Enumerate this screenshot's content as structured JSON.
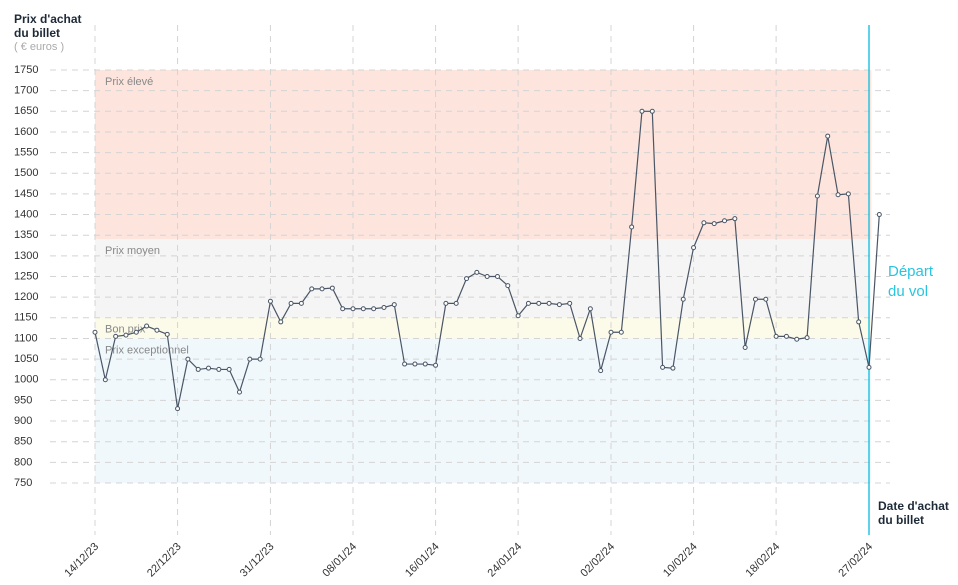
{
  "chart_data": {
    "type": "line",
    "y_label": "Prix d'achat du billet",
    "y_unit": "( € euros )",
    "x_label": "Date d'achat du billet",
    "categories": [
      "14/12/23",
      null,
      null,
      null,
      null,
      null,
      null,
      null,
      "22/12/23",
      null,
      null,
      null,
      null,
      null,
      null,
      null,
      null,
      "31/12/23",
      null,
      null,
      null,
      null,
      null,
      null,
      null,
      "08/01/24",
      null,
      null,
      null,
      null,
      null,
      null,
      null,
      "16/01/24",
      null,
      null,
      null,
      null,
      null,
      null,
      null,
      "24/01/24",
      null,
      null,
      null,
      null,
      null,
      null,
      null,
      null,
      "02/02/24",
      null,
      null,
      null,
      null,
      null,
      null,
      null,
      "10/02/24",
      null,
      null,
      null,
      null,
      null,
      null,
      null,
      "18/02/24",
      null,
      null,
      null,
      null,
      null,
      null,
      null,
      null,
      "27/02/24",
      null
    ],
    "series": [
      {
        "name": "Prix",
        "color": "#4a5666",
        "values": [
          1115,
          1000,
          1105,
          1108,
          1115,
          1130,
          1120,
          1110,
          930,
          1050,
          1025,
          1028,
          1025,
          1025,
          970,
          1050,
          1050,
          1190,
          1140,
          1185,
          1185,
          1220,
          1220,
          1222,
          1172,
          1172,
          1172,
          1172,
          1175,
          1182,
          1038,
          1038,
          1038,
          1035,
          1185,
          1185,
          1245,
          1260,
          1250,
          1250,
          1228,
          1155,
          1185,
          1185,
          1185,
          1182,
          1185,
          1100,
          1172,
          1022,
          1115,
          1115,
          1370,
          1650,
          1650,
          1030,
          1028,
          1195,
          1320,
          1380,
          1378,
          1385,
          1390,
          1078,
          1195,
          1195,
          1105,
          1105,
          1098,
          1102,
          1445,
          1590,
          1448,
          1450,
          1140,
          1030,
          1400
        ]
      }
    ],
    "ylim": [
      750,
      1750
    ],
    "yticks": [
      750,
      800,
      850,
      900,
      950,
      1000,
      1050,
      1100,
      1150,
      1200,
      1250,
      1300,
      1350,
      1400,
      1450,
      1500,
      1550,
      1600,
      1650,
      1700,
      1750
    ],
    "grid": true,
    "bands": [
      {
        "label": "Prix élevé",
        "from": 1340,
        "to": 1750,
        "color": "#fde5de"
      },
      {
        "label": "Prix moyen",
        "from": 1150,
        "to": 1340,
        "color": "#f5f5f5"
      },
      {
        "label": "Bon prix",
        "from": 1100,
        "to": 1150,
        "color": "#fcfbea"
      },
      {
        "label": "Prix exceptionnel",
        "from": 750,
        "to": 1100,
        "color": "#f0f8fc"
      }
    ],
    "annotation": {
      "text": "Départ du vol",
      "x": "27/02/24",
      "color": "#29c4e0"
    }
  }
}
